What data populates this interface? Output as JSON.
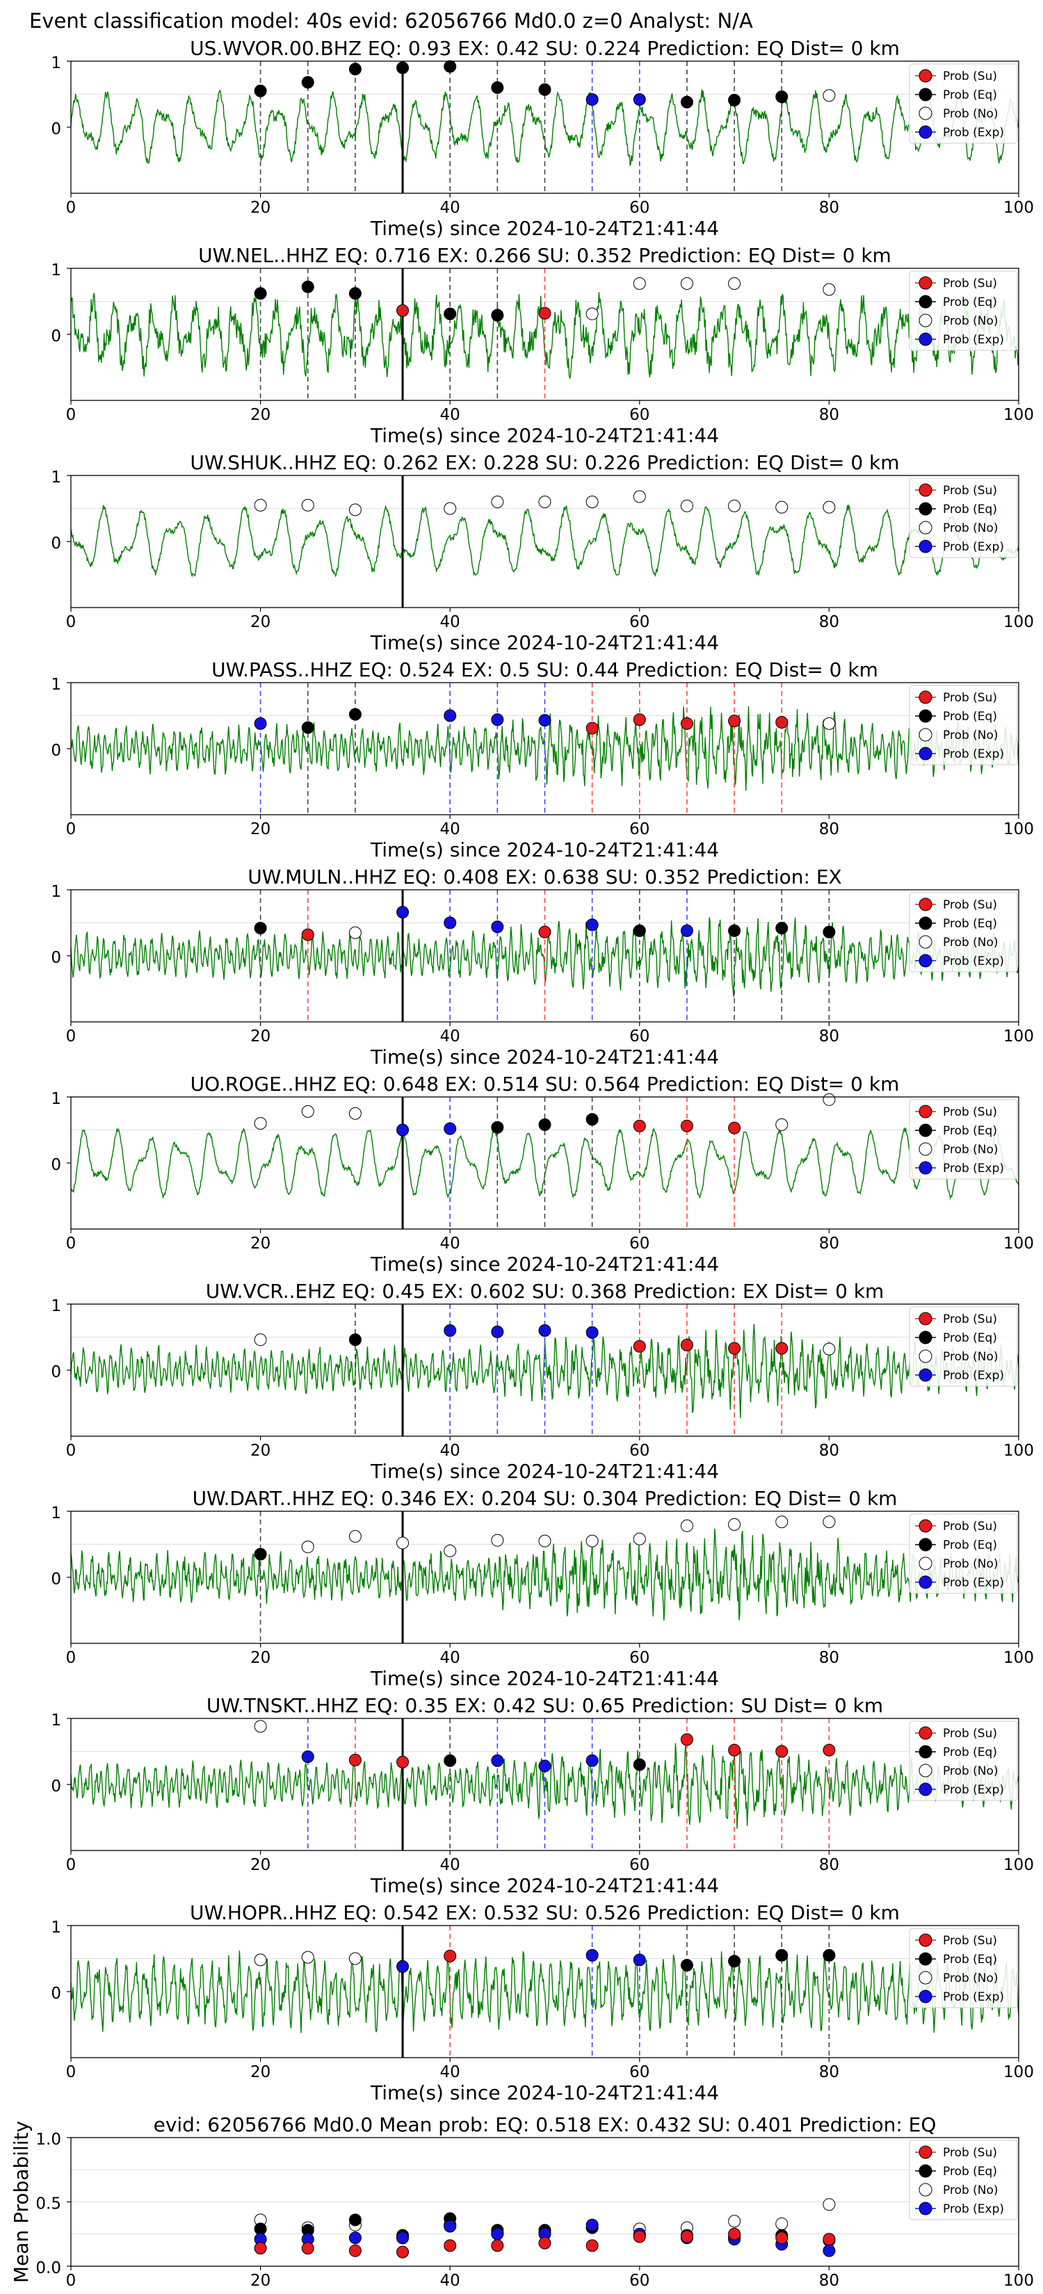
{
  "suptitle": "Event classification model: 40s evid: 62056766 Md0.0 z=0 Analyst: N/A",
  "xlabel": "Time(s) since 2024-10-24T21:41:44",
  "legend": [
    "Prob (Su)",
    "Prob (Eq)",
    "Prob (No)",
    "Prob (Exp)"
  ],
  "colors": {
    "su": "#e41a1c",
    "eq": "#000000",
    "no": "#ffffff",
    "exp": "#1010dd",
    "wave": "#008000",
    "grid": "#dddddd"
  },
  "chart_data": [
    {
      "type": "line",
      "station": "US.WVOR.00.BHZ",
      "title": "US.WVOR.00.BHZ   EQ: 0.93  EX: 0.42  SU: 0.224   Prediction: EQ    Dist= 0 km",
      "xlim": [
        0,
        100
      ],
      "ylim": [
        -1,
        1
      ],
      "xticks": [
        0,
        20,
        40,
        60,
        80,
        100
      ],
      "yticks": [
        1,
        0
      ],
      "pick": 35,
      "noise": 0.12,
      "freq": 1.0,
      "points": [
        {
          "t": 20,
          "p": 0.55,
          "c": "eq"
        },
        {
          "t": 25,
          "p": 0.68,
          "c": "eq"
        },
        {
          "t": 30,
          "p": 0.88,
          "c": "eq"
        },
        {
          "t": 35,
          "p": 0.9,
          "c": "eq"
        },
        {
          "t": 40,
          "p": 0.92,
          "c": "eq"
        },
        {
          "t": 45,
          "p": 0.6,
          "c": "eq"
        },
        {
          "t": 50,
          "p": 0.57,
          "c": "eq"
        },
        {
          "t": 55,
          "p": 0.42,
          "c": "exp"
        },
        {
          "t": 60,
          "p": 0.42,
          "c": "exp"
        },
        {
          "t": 65,
          "p": 0.38,
          "c": "eq"
        },
        {
          "t": 70,
          "p": 0.41,
          "c": "eq"
        },
        {
          "t": 75,
          "p": 0.46,
          "c": "eq"
        },
        {
          "t": 80,
          "p": 0.48,
          "c": "no"
        }
      ]
    },
    {
      "type": "line",
      "station": "UW.NEL..HHZ",
      "title": "UW.NEL..HHZ   EQ: 0.716  EX: 0.266  SU: 0.352   Prediction: EQ    Dist= 0 km",
      "xlim": [
        0,
        100
      ],
      "ylim": [
        -1,
        1
      ],
      "xticks": [
        0,
        20,
        40,
        60,
        80,
        100
      ],
      "yticks": [
        1,
        0
      ],
      "pick": 35,
      "noise": 0.3,
      "freq": 1.4,
      "points": [
        {
          "t": 20,
          "p": 0.62,
          "c": "eq"
        },
        {
          "t": 25,
          "p": 0.72,
          "c": "eq"
        },
        {
          "t": 30,
          "p": 0.62,
          "c": "eq"
        },
        {
          "t": 35,
          "p": 0.36,
          "c": "su"
        },
        {
          "t": 40,
          "p": 0.31,
          "c": "eq"
        },
        {
          "t": 45,
          "p": 0.29,
          "c": "eq"
        },
        {
          "t": 50,
          "p": 0.32,
          "c": "su"
        },
        {
          "t": 55,
          "p": 0.31,
          "c": "no"
        },
        {
          "t": 60,
          "p": 0.77,
          "c": "no"
        },
        {
          "t": 65,
          "p": 0.77,
          "c": "no"
        },
        {
          "t": 70,
          "p": 0.77,
          "c": "no"
        },
        {
          "t": 80,
          "p": 0.68,
          "c": "no"
        }
      ]
    },
    {
      "type": "line",
      "station": "UW.SHUK..HHZ",
      "title": "UW.SHUK..HHZ   EQ: 0.262  EX: 0.228  SU: 0.226   Prediction: EQ    Dist= 0 km",
      "xlim": [
        0,
        100
      ],
      "ylim": [
        -1,
        1
      ],
      "xticks": [
        0,
        20,
        40,
        60,
        80,
        100
      ],
      "yticks": [
        1,
        0
      ],
      "pick": 35,
      "noise": 0.08,
      "freq": 0.8,
      "points": [
        {
          "t": 20,
          "p": 0.55,
          "c": "no"
        },
        {
          "t": 25,
          "p": 0.55,
          "c": "no"
        },
        {
          "t": 30,
          "p": 0.48,
          "c": "no"
        },
        {
          "t": 40,
          "p": 0.5,
          "c": "no"
        },
        {
          "t": 45,
          "p": 0.6,
          "c": "no"
        },
        {
          "t": 50,
          "p": 0.6,
          "c": "no"
        },
        {
          "t": 55,
          "p": 0.6,
          "c": "no"
        },
        {
          "t": 60,
          "p": 0.68,
          "c": "no"
        },
        {
          "t": 65,
          "p": 0.54,
          "c": "no"
        },
        {
          "t": 70,
          "p": 0.54,
          "c": "no"
        },
        {
          "t": 75,
          "p": 0.52,
          "c": "no"
        },
        {
          "t": 80,
          "p": 0.52,
          "c": "no"
        }
      ]
    },
    {
      "type": "line",
      "station": "UW.PASS..HHZ",
      "title": "UW.PASS..HHZ   EQ: 0.524  EX: 0.5  SU: 0.44   Prediction: EQ    Dist= 0 km",
      "xlim": [
        0,
        100
      ],
      "ylim": [
        -1,
        1
      ],
      "xticks": [
        0,
        20,
        40,
        60,
        80,
        100
      ],
      "yticks": [
        1,
        0
      ],
      "pick": null,
      "noise": 0.45,
      "freq": 3.0,
      "points": [
        {
          "t": 20,
          "p": 0.38,
          "c": "exp"
        },
        {
          "t": 25,
          "p": 0.32,
          "c": "eq"
        },
        {
          "t": 30,
          "p": 0.52,
          "c": "eq"
        },
        {
          "t": 40,
          "p": 0.5,
          "c": "exp"
        },
        {
          "t": 45,
          "p": 0.44,
          "c": "exp"
        },
        {
          "t": 50,
          "p": 0.43,
          "c": "exp"
        },
        {
          "t": 55,
          "p": 0.31,
          "c": "su"
        },
        {
          "t": 60,
          "p": 0.44,
          "c": "su"
        },
        {
          "t": 65,
          "p": 0.38,
          "c": "su"
        },
        {
          "t": 70,
          "p": 0.42,
          "c": "su"
        },
        {
          "t": 75,
          "p": 0.4,
          "c": "su"
        },
        {
          "t": 80,
          "p": 0.38,
          "c": "no"
        }
      ]
    },
    {
      "type": "line",
      "station": "UW.MULN..HHZ",
      "title": "UW.MULN..HHZ   EQ: 0.408  EX: 0.638  SU: 0.352   Prediction: EX",
      "xlim": [
        0,
        100
      ],
      "ylim": [
        -1,
        1
      ],
      "xticks": [
        0,
        20,
        40,
        60,
        80,
        100
      ],
      "yticks": [
        1,
        0
      ],
      "pick": 35,
      "noise": 0.35,
      "freq": 3.0,
      "points": [
        {
          "t": 20,
          "p": 0.42,
          "c": "eq"
        },
        {
          "t": 25,
          "p": 0.32,
          "c": "su"
        },
        {
          "t": 30,
          "p": 0.35,
          "c": "no"
        },
        {
          "t": 35,
          "p": 0.66,
          "c": "exp"
        },
        {
          "t": 40,
          "p": 0.5,
          "c": "exp"
        },
        {
          "t": 45,
          "p": 0.44,
          "c": "exp"
        },
        {
          "t": 50,
          "p": 0.36,
          "c": "su"
        },
        {
          "t": 55,
          "p": 0.47,
          "c": "exp"
        },
        {
          "t": 60,
          "p": 0.38,
          "c": "eq"
        },
        {
          "t": 65,
          "p": 0.38,
          "c": "exp"
        },
        {
          "t": 70,
          "p": 0.38,
          "c": "eq"
        },
        {
          "t": 75,
          "p": 0.42,
          "c": "eq"
        },
        {
          "t": 80,
          "p": 0.36,
          "c": "eq"
        }
      ]
    },
    {
      "type": "line",
      "station": "UO.ROGE..HHZ",
      "title": "UO.ROGE..HHZ   EQ: 0.648  EX: 0.514  SU: 0.564   Prediction: EQ    Dist= 0 km",
      "xlim": [
        0,
        100
      ],
      "ylim": [
        -1,
        1
      ],
      "xticks": [
        0,
        20,
        40,
        60,
        80,
        100
      ],
      "yticks": [
        1,
        0
      ],
      "pick": 35,
      "noise": 0.06,
      "freq": 0.9,
      "points": [
        {
          "t": 20,
          "p": 0.6,
          "c": "no"
        },
        {
          "t": 25,
          "p": 0.78,
          "c": "no"
        },
        {
          "t": 30,
          "p": 0.75,
          "c": "no"
        },
        {
          "t": 35,
          "p": 0.5,
          "c": "exp"
        },
        {
          "t": 40,
          "p": 0.52,
          "c": "exp"
        },
        {
          "t": 45,
          "p": 0.54,
          "c": "eq"
        },
        {
          "t": 50,
          "p": 0.58,
          "c": "eq"
        },
        {
          "t": 55,
          "p": 0.66,
          "c": "eq"
        },
        {
          "t": 60,
          "p": 0.56,
          "c": "su"
        },
        {
          "t": 65,
          "p": 0.56,
          "c": "su"
        },
        {
          "t": 70,
          "p": 0.53,
          "c": "su"
        },
        {
          "t": 75,
          "p": 0.58,
          "c": "no"
        },
        {
          "t": 80,
          "p": 0.96,
          "c": "no"
        }
      ]
    },
    {
      "type": "line",
      "station": "UW.VCR..EHZ",
      "title": "UW.VCR..EHZ   EQ: 0.45  EX: 0.602  SU: 0.368   Prediction: EX    Dist= 0 km",
      "xlim": [
        0,
        100
      ],
      "ylim": [
        -1,
        1
      ],
      "xticks": [
        0,
        20,
        40,
        60,
        80,
        100
      ],
      "yticks": [
        1,
        0
      ],
      "pick": 35,
      "noise": 0.4,
      "freq": 3.0,
      "points": [
        {
          "t": 20,
          "p": 0.46,
          "c": "no"
        },
        {
          "t": 30,
          "p": 0.46,
          "c": "eq"
        },
        {
          "t": 40,
          "p": 0.6,
          "c": "exp"
        },
        {
          "t": 45,
          "p": 0.58,
          "c": "exp"
        },
        {
          "t": 50,
          "p": 0.6,
          "c": "exp"
        },
        {
          "t": 55,
          "p": 0.57,
          "c": "exp"
        },
        {
          "t": 60,
          "p": 0.36,
          "c": "su"
        },
        {
          "t": 65,
          "p": 0.38,
          "c": "su"
        },
        {
          "t": 70,
          "p": 0.33,
          "c": "su"
        },
        {
          "t": 75,
          "p": 0.33,
          "c": "su"
        },
        {
          "t": 80,
          "p": 0.32,
          "c": "no"
        }
      ]
    },
    {
      "type": "line",
      "station": "UW.DART..HHZ",
      "title": "UW.DART..HHZ   EQ: 0.346  EX: 0.204  SU: 0.304   Prediction: EQ    Dist= 0 km",
      "xlim": [
        0,
        100
      ],
      "ylim": [
        -1,
        1
      ],
      "xticks": [
        0,
        20,
        40,
        60,
        80,
        100
      ],
      "yticks": [
        1,
        0
      ],
      "pick": 35,
      "noise": 0.55,
      "freq": 3.0,
      "points": [
        {
          "t": 20,
          "p": 0.35,
          "c": "eq"
        },
        {
          "t": 25,
          "p": 0.46,
          "c": "no"
        },
        {
          "t": 30,
          "p": 0.62,
          "c": "no"
        },
        {
          "t": 35,
          "p": 0.52,
          "c": "no"
        },
        {
          "t": 40,
          "p": 0.4,
          "c": "no"
        },
        {
          "t": 45,
          "p": 0.56,
          "c": "no"
        },
        {
          "t": 50,
          "p": 0.55,
          "c": "no"
        },
        {
          "t": 55,
          "p": 0.55,
          "c": "no"
        },
        {
          "t": 60,
          "p": 0.58,
          "c": "no"
        },
        {
          "t": 65,
          "p": 0.78,
          "c": "no"
        },
        {
          "t": 70,
          "p": 0.8,
          "c": "no"
        },
        {
          "t": 75,
          "p": 0.84,
          "c": "no"
        },
        {
          "t": 80,
          "p": 0.84,
          "c": "no"
        }
      ]
    },
    {
      "type": "line",
      "station": "UW.TNSKT..HHZ",
      "title": "UW.TNSKT..HHZ   EQ: 0.35  EX: 0.42  SU: 0.65   Prediction: SU    Dist= 0 km",
      "xlim": [
        0,
        100
      ],
      "ylim": [
        -1,
        1
      ],
      "xticks": [
        0,
        20,
        40,
        60,
        80,
        100
      ],
      "yticks": [
        1,
        0
      ],
      "pick": 35,
      "noise": 0.38,
      "freq": 3.0,
      "points": [
        {
          "t": 20,
          "p": 0.88,
          "c": "no"
        },
        {
          "t": 25,
          "p": 0.42,
          "c": "exp"
        },
        {
          "t": 30,
          "p": 0.37,
          "c": "su"
        },
        {
          "t": 35,
          "p": 0.34,
          "c": "su"
        },
        {
          "t": 40,
          "p": 0.36,
          "c": "eq"
        },
        {
          "t": 45,
          "p": 0.36,
          "c": "exp"
        },
        {
          "t": 50,
          "p": 0.28,
          "c": "exp"
        },
        {
          "t": 55,
          "p": 0.36,
          "c": "exp"
        },
        {
          "t": 60,
          "p": 0.3,
          "c": "eq"
        },
        {
          "t": 65,
          "p": 0.68,
          "c": "su"
        },
        {
          "t": 70,
          "p": 0.52,
          "c": "su"
        },
        {
          "t": 75,
          "p": 0.5,
          "c": "su"
        },
        {
          "t": 80,
          "p": 0.52,
          "c": "su"
        }
      ]
    },
    {
      "type": "line",
      "station": "UW.HOPR..HHZ",
      "title": "UW.HOPR..HHZ   EQ: 0.542  EX: 0.532  SU: 0.526   Prediction: EQ    Dist= 0 km",
      "xlim": [
        0,
        100
      ],
      "ylim": [
        -1,
        1
      ],
      "xticks": [
        0,
        20,
        40,
        60,
        80,
        100
      ],
      "yticks": [
        1,
        0
      ],
      "pick": 35,
      "noise": 0.25,
      "freq": 3.0,
      "points": [
        {
          "t": 20,
          "p": 0.48,
          "c": "no"
        },
        {
          "t": 25,
          "p": 0.52,
          "c": "no"
        },
        {
          "t": 30,
          "p": 0.5,
          "c": "no"
        },
        {
          "t": 35,
          "p": 0.38,
          "c": "exp"
        },
        {
          "t": 40,
          "p": 0.54,
          "c": "su"
        },
        {
          "t": 55,
          "p": 0.55,
          "c": "exp"
        },
        {
          "t": 60,
          "p": 0.48,
          "c": "exp"
        },
        {
          "t": 65,
          "p": 0.4,
          "c": "eq"
        },
        {
          "t": 70,
          "p": 0.46,
          "c": "eq"
        },
        {
          "t": 75,
          "p": 0.55,
          "c": "eq"
        },
        {
          "t": 80,
          "p": 0.55,
          "c": "eq"
        }
      ]
    },
    {
      "type": "scatter",
      "title": "evid: 62056766  Md0.0   Mean prob:   EQ: 0.518  EX: 0.432  SU: 0.401   Prediction: EQ",
      "ylabel": "Mean Probability",
      "xlim": [
        0,
        100
      ],
      "ylim": [
        0,
        1
      ],
      "xticks": [
        0,
        20,
        40,
        60,
        80,
        100
      ],
      "yticks": [
        1.0,
        0.5,
        0.0
      ],
      "ytick_labels": [
        "1.0",
        "0.5",
        "0.0"
      ],
      "x": [
        20,
        25,
        30,
        35,
        40,
        45,
        50,
        55,
        60,
        65,
        70,
        75,
        80
      ],
      "series": [
        {
          "name": "Prob (No)",
          "c": "no",
          "values": [
            0.36,
            0.3,
            0.32,
            0.22,
            0.32,
            0.26,
            0.26,
            0.3,
            0.29,
            0.3,
            0.35,
            0.33,
            0.48
          ]
        },
        {
          "name": "Prob (Eq)",
          "c": "eq",
          "values": [
            0.29,
            0.28,
            0.36,
            0.24,
            0.37,
            0.28,
            0.28,
            0.3,
            0.24,
            0.24,
            0.23,
            0.24,
            0.2
          ]
        },
        {
          "name": "Prob (Exp)",
          "c": "exp",
          "values": [
            0.21,
            0.21,
            0.22,
            0.22,
            0.31,
            0.25,
            0.25,
            0.32,
            0.25,
            0.22,
            0.21,
            0.17,
            0.12
          ]
        },
        {
          "name": "Prob (Su)",
          "c": "su",
          "values": [
            0.14,
            0.14,
            0.12,
            0.11,
            0.16,
            0.16,
            0.18,
            0.16,
            0.23,
            0.23,
            0.25,
            0.22,
            0.21
          ]
        }
      ]
    }
  ]
}
